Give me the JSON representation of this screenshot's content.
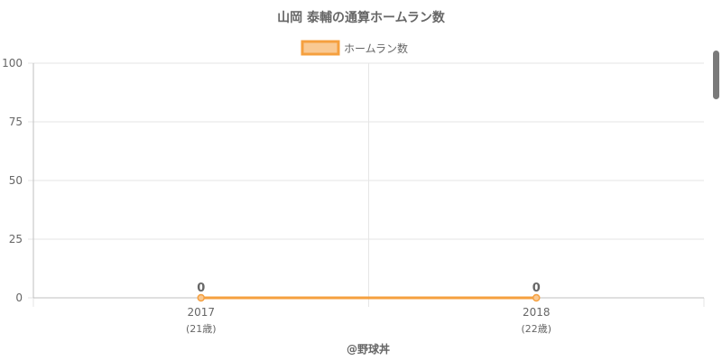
{
  "chart_data": {
    "type": "line",
    "title": "山岡 泰輔の通算ホームラン数",
    "legend": {
      "position": "top",
      "entries": [
        "ホームラン数"
      ]
    },
    "categories": [
      {
        "year": "2017",
        "age": "(21歳)"
      },
      {
        "year": "2018",
        "age": "(22歳)"
      }
    ],
    "series": [
      {
        "name": "ホームラン数",
        "values": [
          0,
          0
        ],
        "data_labels": [
          "0",
          "0"
        ]
      }
    ],
    "ylim": [
      0,
      100
    ],
    "yticks": [
      "0",
      "25",
      "50",
      "75",
      "100"
    ],
    "grid": true,
    "xlabel": "",
    "ylabel": "",
    "colors": {
      "line": "#f5a03f",
      "fill": "#f9c993",
      "grid": "#e6e6e6",
      "axis": "#bfbfbf",
      "text": "#666666"
    },
    "credit": "@野球丼"
  }
}
